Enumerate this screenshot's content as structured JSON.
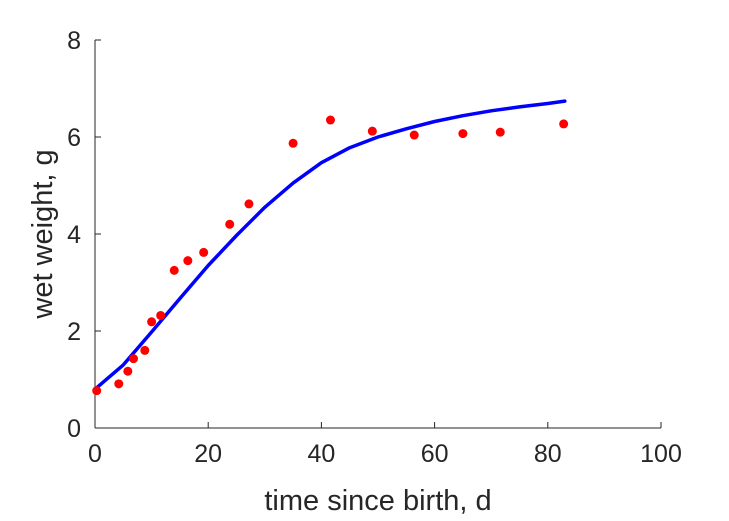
{
  "chart_data": {
    "type": "scatter",
    "title": "",
    "xlabel": "time since birth, d",
    "ylabel": "wet weight, g",
    "xlim": [
      0,
      100
    ],
    "ylim": [
      0,
      8
    ],
    "xticks": [
      0,
      20,
      40,
      60,
      80,
      100
    ],
    "yticks": [
      0,
      2,
      4,
      6,
      8
    ],
    "xtick_labels": [
      "0",
      "20",
      "40",
      "60",
      "80",
      "100"
    ],
    "ytick_labels": [
      "0",
      "2",
      "4",
      "6",
      "8"
    ],
    "grid": false,
    "legend": "none",
    "series": [
      {
        "type": "scatter",
        "color": "#ff0000",
        "points": [
          {
            "x": 0.3,
            "y": 0.77
          },
          {
            "x": 4.2,
            "y": 0.91
          },
          {
            "x": 5.8,
            "y": 1.17
          },
          {
            "x": 6.8,
            "y": 1.43
          },
          {
            "x": 8.8,
            "y": 1.6
          },
          {
            "x": 10.0,
            "y": 2.19
          },
          {
            "x": 11.6,
            "y": 2.32
          },
          {
            "x": 14.0,
            "y": 3.25
          },
          {
            "x": 16.4,
            "y": 3.45
          },
          {
            "x": 19.2,
            "y": 3.62
          },
          {
            "x": 23.8,
            "y": 4.2
          },
          {
            "x": 27.2,
            "y": 4.62
          },
          {
            "x": 35.0,
            "y": 5.87
          },
          {
            "x": 41.6,
            "y": 6.35
          },
          {
            "x": 49.0,
            "y": 6.12
          },
          {
            "x": 56.4,
            "y": 6.04
          },
          {
            "x": 65.0,
            "y": 6.07
          },
          {
            "x": 71.6,
            "y": 6.1
          },
          {
            "x": 82.8,
            "y": 6.27
          }
        ]
      },
      {
        "type": "line",
        "color": "#0000ff",
        "points": [
          {
            "x": 0,
            "y": 0.8
          },
          {
            "x": 5,
            "y": 1.3
          },
          {
            "x": 10,
            "y": 1.98
          },
          {
            "x": 15,
            "y": 2.67
          },
          {
            "x": 20,
            "y": 3.35
          },
          {
            "x": 25,
            "y": 3.97
          },
          {
            "x": 30,
            "y": 4.55
          },
          {
            "x": 35,
            "y": 5.05
          },
          {
            "x": 40,
            "y": 5.47
          },
          {
            "x": 45,
            "y": 5.78
          },
          {
            "x": 50,
            "y": 6.0
          },
          {
            "x": 55,
            "y": 6.17
          },
          {
            "x": 60,
            "y": 6.32
          },
          {
            "x": 65,
            "y": 6.44
          },
          {
            "x": 70,
            "y": 6.54
          },
          {
            "x": 75,
            "y": 6.62
          },
          {
            "x": 80,
            "y": 6.69
          },
          {
            "x": 83,
            "y": 6.74
          }
        ]
      }
    ]
  }
}
